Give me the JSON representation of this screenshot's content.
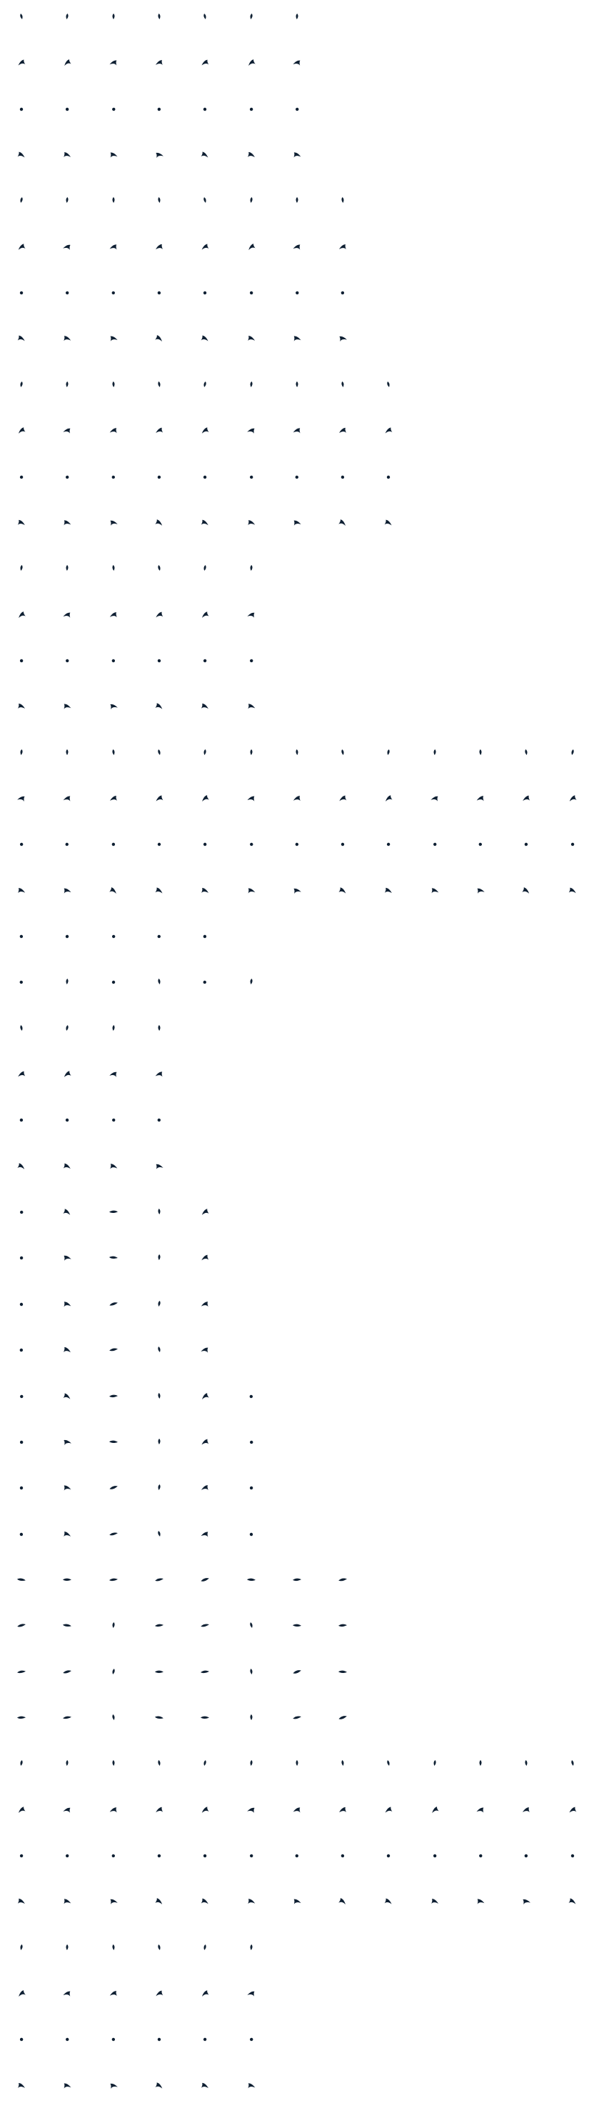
{
  "sheet": {
    "ink": "#0f2033",
    "icon_names": [
      "dot-icon",
      "hook-icon",
      "tilted-hook-icon",
      "teardrop-icon",
      "dash-icon"
    ],
    "rows": [
      {
        "count": 7,
        "kind": "drop"
      },
      {
        "count": 7,
        "kind": "hook"
      },
      {
        "count": 7,
        "kind": "dot"
      },
      {
        "count": 7,
        "kind": "hook-l"
      },
      {
        "count": 8,
        "kind": "drop"
      },
      {
        "count": 8,
        "kind": "hook"
      },
      {
        "count": 8,
        "kind": "dot"
      },
      {
        "count": 8,
        "kind": "hook-l"
      },
      {
        "count": 9,
        "kind": "drop"
      },
      {
        "count": 9,
        "kind": "hook"
      },
      {
        "count": 9,
        "kind": "dot"
      },
      {
        "count": 9,
        "kind": "hook-l"
      },
      {
        "count": 6,
        "kind": "drop"
      },
      {
        "count": 6,
        "kind": "hook"
      },
      {
        "count": 6,
        "kind": "dot"
      },
      {
        "count": 6,
        "kind": "hook-l"
      },
      {
        "count": 13,
        "kind": "drop"
      },
      {
        "count": 13,
        "kind": "hook"
      },
      {
        "count": 13,
        "kind": "dot"
      },
      {
        "count": 13,
        "kind": "hook-l"
      },
      {
        "count": 5,
        "kind": "mixed-a"
      },
      {
        "count": 6,
        "kind": "mixed-b"
      },
      {
        "count": 4,
        "kind": "drop"
      },
      {
        "count": 4,
        "kind": "hook"
      },
      {
        "count": 4,
        "kind": "dot"
      },
      {
        "count": 4,
        "kind": "hook-l"
      },
      {
        "count": 5,
        "kind": "mixed-c"
      },
      {
        "count": 5,
        "kind": "mixed-d"
      },
      {
        "count": 5,
        "kind": "mixed-e"
      },
      {
        "count": 5,
        "kind": "mixed-f"
      },
      {
        "count": 6,
        "kind": "mixed-g"
      },
      {
        "count": 6,
        "kind": "mixed-h"
      },
      {
        "count": 6,
        "kind": "mixed-i"
      },
      {
        "count": 6,
        "kind": "mixed-j"
      },
      {
        "count": 8,
        "kind": "dash"
      },
      {
        "count": 8,
        "kind": "dash-r"
      },
      {
        "count": 8,
        "kind": "dash-mix"
      },
      {
        "count": 8,
        "kind": "dash-l"
      },
      {
        "count": 13,
        "kind": "drop"
      },
      {
        "count": 13,
        "kind": "hook"
      },
      {
        "count": 13,
        "kind": "dot"
      },
      {
        "count": 13,
        "kind": "hook-l"
      },
      {
        "count": 6,
        "kind": "drop"
      },
      {
        "count": 6,
        "kind": "hook"
      },
      {
        "count": 6,
        "kind": "dot"
      },
      {
        "count": 6,
        "kind": "hook-l"
      }
    ]
  }
}
